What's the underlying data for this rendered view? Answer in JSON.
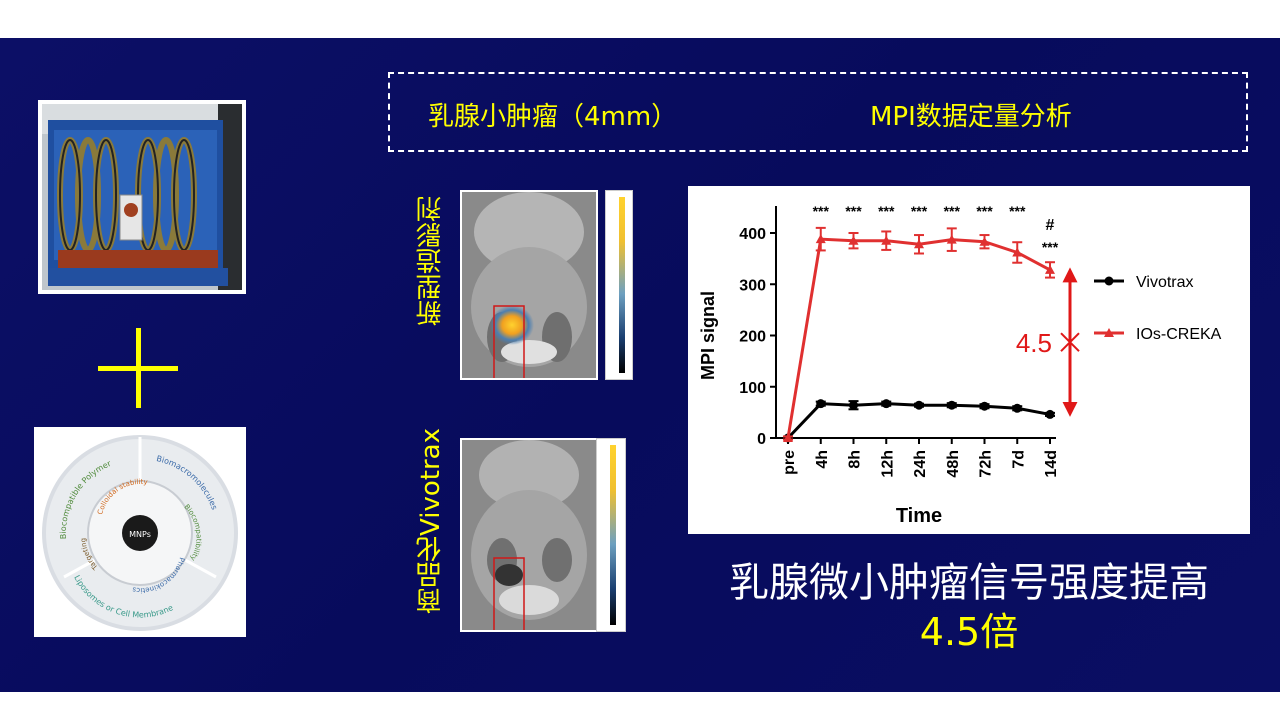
{
  "header": {
    "left_text": "乳腺小肿瘤（4mm）",
    "right_text": "MPI数据定量分析"
  },
  "images": {
    "top_label": "新型造影剂",
    "bottom_label": "商品化Vivotrax"
  },
  "mnp_diagram": {
    "center": "MNPs",
    "outer_top_left": "Biocompatible Polymer",
    "outer_top_right": "Biomacromolecules",
    "outer_bottom": "Liposomes or Cell Membrane",
    "inner_top": "Colloidal stability",
    "inner_right": "Biocompatibility",
    "inner_bottom": "Pharmacokinetics",
    "inner_left": "Targeting"
  },
  "caption": {
    "line1": "乳腺微小肿瘤信号强度提高",
    "line2": "4.5倍"
  },
  "colors": {
    "background": "#0a0e63",
    "accent_yellow": "#ffff00",
    "creka_red": "#e03030",
    "vivotrax_black": "#000000",
    "arrow_red": "#e01818"
  },
  "chart_data": {
    "type": "line",
    "xlabel": "Time",
    "ylabel": "MPI signal",
    "categories": [
      "pre",
      "4h",
      "8h",
      "12h",
      "24h",
      "48h",
      "72h",
      "7d",
      "14d"
    ],
    "ylim": [
      0,
      400
    ],
    "yticks": [
      0,
      100,
      200,
      300,
      400
    ],
    "grid": false,
    "legend_position": "right",
    "series": [
      {
        "name": "Vivotrax",
        "color": "#000000",
        "marker": "circle",
        "values": [
          0,
          67,
          64,
          67,
          64,
          64,
          62,
          58,
          46
        ],
        "errors": [
          3,
          4,
          8,
          4,
          3,
          4,
          4,
          4,
          3
        ]
      },
      {
        "name": "IOs-CREKA",
        "color": "#e03030",
        "marker": "triangle",
        "values": [
          0,
          388,
          385,
          385,
          378,
          387,
          383,
          362,
          328
        ],
        "errors": [
          3,
          22,
          15,
          18,
          18,
          22,
          13,
          20,
          15
        ]
      }
    ],
    "significance": [
      "",
      "***",
      "***",
      "***",
      "***",
      "***",
      "***",
      "***",
      "***"
    ],
    "extra_mark": {
      "category": "14d",
      "symbol": "#"
    },
    "annotation": {
      "text": "4.5"
    }
  }
}
